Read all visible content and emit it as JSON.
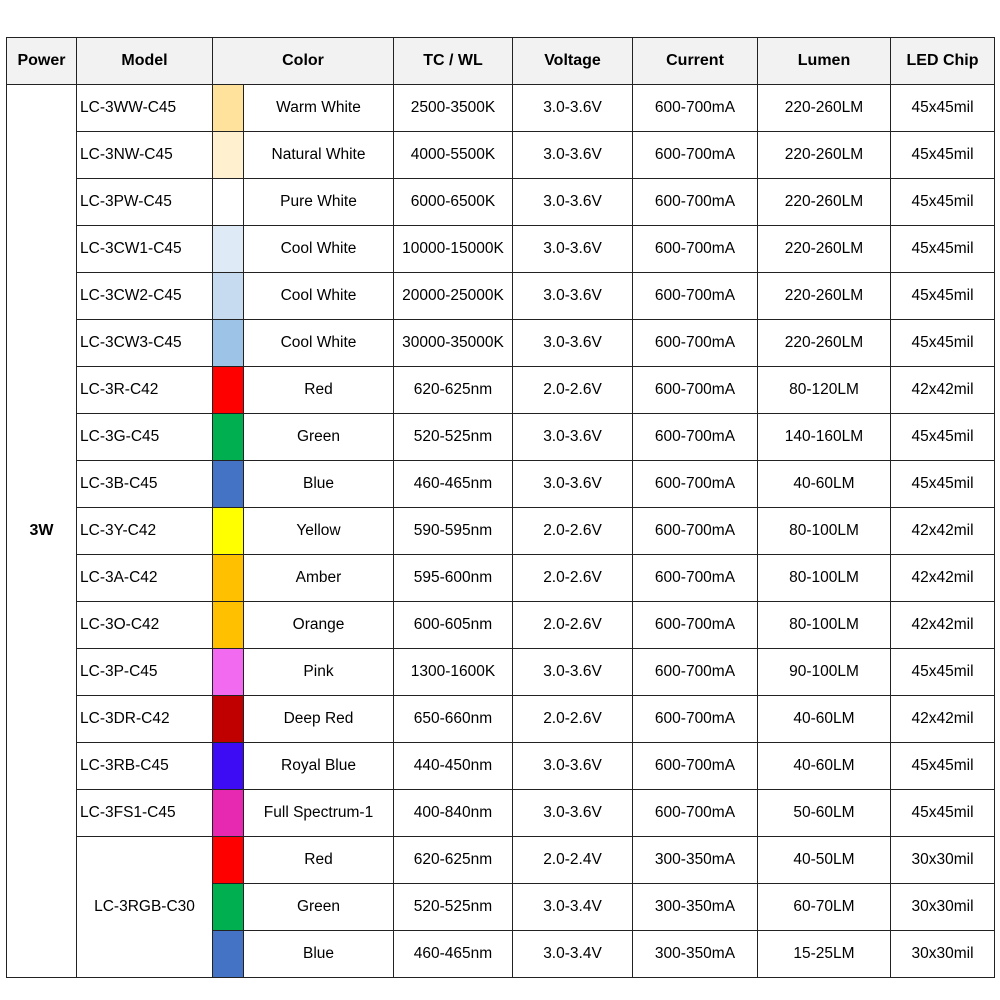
{
  "headers": {
    "power": "Power",
    "model": "Model",
    "color": "Color",
    "tcwl": "TC / WL",
    "voltage": "Voltage",
    "current": "Current",
    "lumen": "Lumen",
    "chip": "LED Chip"
  },
  "power": "3W",
  "rows": [
    {
      "model": "LC-3WW-C45",
      "swatch": "#ffe39c",
      "color": "Warm White",
      "tcwl": "2500-3500K",
      "voltage": "3.0-3.6V",
      "current": "600-700mA",
      "lumen": "220-260LM",
      "chip": "45x45mil"
    },
    {
      "model": "LC-3NW-C45",
      "swatch": "#fff0cf",
      "color": "Natural White",
      "tcwl": "4000-5500K",
      "voltage": "3.0-3.6V",
      "current": "600-700mA",
      "lumen": "220-260LM",
      "chip": "45x45mil"
    },
    {
      "model": "LC-3PW-C45",
      "swatch": "#ffffff",
      "color": "Pure White",
      "tcwl": "6000-6500K",
      "voltage": "3.0-3.6V",
      "current": "600-700mA",
      "lumen": "220-260LM",
      "chip": "45x45mil"
    },
    {
      "model": "LC-3CW1-C45",
      "swatch": "#deebf7",
      "color": "Cool White",
      "tcwl": "10000-15000K",
      "voltage": "3.0-3.6V",
      "current": "600-700mA",
      "lumen": "220-260LM",
      "chip": "45x45mil"
    },
    {
      "model": "LC-3CW2-C45",
      "swatch": "#c6daf0",
      "color": "Cool White",
      "tcwl": "20000-25000K",
      "voltage": "3.0-3.6V",
      "current": "600-700mA",
      "lumen": "220-260LM",
      "chip": "45x45mil"
    },
    {
      "model": "LC-3CW3-C45",
      "swatch": "#9dc3e6",
      "color": "Cool White",
      "tcwl": "30000-35000K",
      "voltage": "3.0-3.6V",
      "current": "600-700mA",
      "lumen": "220-260LM",
      "chip": "45x45mil"
    },
    {
      "model": "LC-3R-C42",
      "swatch": "#ff0000",
      "color": "Red",
      "tcwl": "620-625nm",
      "voltage": "2.0-2.6V",
      "current": "600-700mA",
      "lumen": "80-120LM",
      "chip": "42x42mil"
    },
    {
      "model": "LC-3G-C45",
      "swatch": "#00b050",
      "color": "Green",
      "tcwl": "520-525nm",
      "voltage": "3.0-3.6V",
      "current": "600-700mA",
      "lumen": "140-160LM",
      "chip": "45x45mil"
    },
    {
      "model": "LC-3B-C45",
      "swatch": "#4472c4",
      "color": "Blue",
      "tcwl": "460-465nm",
      "voltage": "3.0-3.6V",
      "current": "600-700mA",
      "lumen": "40-60LM",
      "chip": "45x45mil"
    },
    {
      "model": "LC-3Y-C42",
      "swatch": "#ffff00",
      "color": "Yellow",
      "tcwl": "590-595nm",
      "voltage": "2.0-2.6V",
      "current": "600-700mA",
      "lumen": "80-100LM",
      "chip": "42x42mil"
    },
    {
      "model": "LC-3A-C42",
      "swatch": "#ffc000",
      "color": "Amber",
      "tcwl": "595-600nm",
      "voltage": "2.0-2.6V",
      "current": "600-700mA",
      "lumen": "80-100LM",
      "chip": "42x42mil"
    },
    {
      "model": "LC-3O-C42",
      "swatch": "#ffc000",
      "color": "Orange",
      "tcwl": "600-605nm",
      "voltage": "2.0-2.6V",
      "current": "600-700mA",
      "lumen": "80-100LM",
      "chip": "42x42mil"
    },
    {
      "model": "LC-3P-C45",
      "swatch": "#f26af0",
      "color": "Pink",
      "tcwl": "1300-1600K",
      "voltage": "3.0-3.6V",
      "current": "600-700mA",
      "lumen": "90-100LM",
      "chip": "45x45mil"
    },
    {
      "model": "LC-3DR-C42",
      "swatch": "#c00000",
      "color": "Deep Red",
      "tcwl": "650-660nm",
      "voltage": "2.0-2.6V",
      "current": "600-700mA",
      "lumen": "40-60LM",
      "chip": "42x42mil"
    },
    {
      "model": "LC-3RB-C45",
      "swatch": "#3d0cf5",
      "color": "Royal Blue",
      "tcwl": "440-450nm",
      "voltage": "3.0-3.6V",
      "current": "600-700mA",
      "lumen": "40-60LM",
      "chip": "45x45mil"
    },
    {
      "model": "LC-3FS1-C45",
      "swatch": "#e629b0",
      "color": "Full Spectrum-1",
      "tcwl": "400-840nm",
      "voltage": "3.0-3.6V",
      "current": "600-700mA",
      "lumen": "50-60LM",
      "chip": "45x45mil"
    }
  ],
  "rgb_group": {
    "model": "LC-3RGB-C30",
    "rows": [
      {
        "swatch": "#ff0000",
        "color": "Red",
        "tcwl": "620-625nm",
        "voltage": "2.0-2.4V",
        "current": "300-350mA",
        "lumen": "40-50LM",
        "chip": "30x30mil"
      },
      {
        "swatch": "#00b050",
        "color": "Green",
        "tcwl": "520-525nm",
        "voltage": "3.0-3.4V",
        "current": "300-350mA",
        "lumen": "60-70LM",
        "chip": "30x30mil"
      },
      {
        "swatch": "#4472c4",
        "color": "Blue",
        "tcwl": "460-465nm",
        "voltage": "3.0-3.4V",
        "current": "300-350mA",
        "lumen": "15-25LM",
        "chip": "30x30mil"
      }
    ]
  }
}
